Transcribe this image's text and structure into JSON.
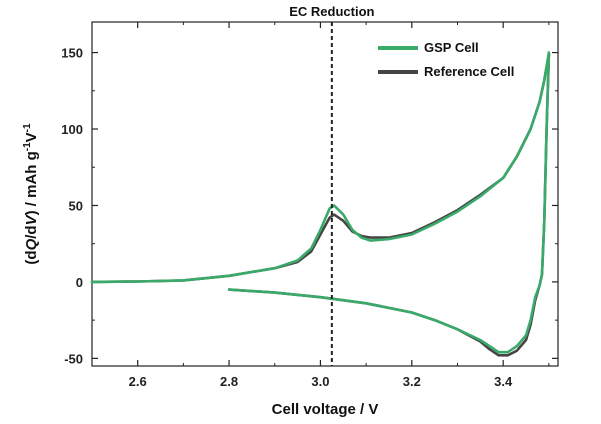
{
  "chart_data": {
    "type": "line",
    "title": "",
    "xlabel": "Cell voltage / V",
    "ylabel_parts": [
      "(d",
      "Q",
      "/d",
      "V",
      ") / mAh g",
      "-1",
      "V",
      "-1"
    ],
    "xlim": [
      2.5,
      3.52
    ],
    "ylim": [
      -55,
      170
    ],
    "xticks": [
      2.6,
      2.8,
      3.0,
      3.2,
      3.4
    ],
    "xtick_labels": [
      "2.6",
      "2.8",
      "3.0",
      "3.2",
      "3.4"
    ],
    "yticks": [
      -50,
      0,
      50,
      100,
      150
    ],
    "ytick_labels": [
      "-50",
      "0",
      "50",
      "100",
      "150"
    ],
    "grid": false,
    "legend_position": "top-right",
    "annotations": [
      {
        "text": "EC Reduction",
        "x": 3.025,
        "linestyle": "dashed"
      }
    ],
    "series": [
      {
        "name": "GSP Cell",
        "color": "#3aaa6a",
        "charge": [
          [
            2.5,
            0
          ],
          [
            2.6,
            0.3
          ],
          [
            2.7,
            1
          ],
          [
            2.8,
            4
          ],
          [
            2.9,
            9
          ],
          [
            2.95,
            14
          ],
          [
            2.98,
            22
          ],
          [
            3.0,
            34
          ],
          [
            3.02,
            48
          ],
          [
            3.03,
            50
          ],
          [
            3.05,
            44
          ],
          [
            3.07,
            34
          ],
          [
            3.09,
            29
          ],
          [
            3.11,
            27
          ],
          [
            3.15,
            28
          ],
          [
            3.2,
            31
          ],
          [
            3.25,
            38
          ],
          [
            3.3,
            46
          ],
          [
            3.35,
            56
          ],
          [
            3.4,
            68
          ],
          [
            3.43,
            82
          ],
          [
            3.46,
            100
          ],
          [
            3.48,
            118
          ],
          [
            3.49,
            132
          ],
          [
            3.5,
            150
          ]
        ],
        "discharge": [
          [
            3.5,
            150
          ],
          [
            3.495,
            100
          ],
          [
            3.49,
            40
          ],
          [
            3.485,
            5
          ],
          [
            3.48,
            -2
          ],
          [
            3.47,
            -10
          ],
          [
            3.46,
            -25
          ],
          [
            3.45,
            -35
          ],
          [
            3.43,
            -42
          ],
          [
            3.41,
            -46
          ],
          [
            3.39,
            -46
          ],
          [
            3.37,
            -42
          ],
          [
            3.35,
            -38
          ],
          [
            3.3,
            -31
          ],
          [
            3.25,
            -25
          ],
          [
            3.2,
            -20
          ],
          [
            3.1,
            -14
          ],
          [
            3.0,
            -10
          ],
          [
            2.9,
            -7
          ],
          [
            2.8,
            -5
          ]
        ]
      },
      {
        "name": "Reference Cell",
        "color": "#454545",
        "charge": [
          [
            2.5,
            0
          ],
          [
            2.6,
            0.3
          ],
          [
            2.7,
            1
          ],
          [
            2.8,
            4
          ],
          [
            2.9,
            9
          ],
          [
            2.95,
            13
          ],
          [
            2.98,
            20
          ],
          [
            3.0,
            31
          ],
          [
            3.02,
            42
          ],
          [
            3.03,
            44
          ],
          [
            3.05,
            40
          ],
          [
            3.07,
            33
          ],
          [
            3.09,
            30
          ],
          [
            3.11,
            29
          ],
          [
            3.15,
            29
          ],
          [
            3.2,
            32
          ],
          [
            3.25,
            39
          ],
          [
            3.3,
            47
          ],
          [
            3.35,
            57
          ],
          [
            3.4,
            68
          ],
          [
            3.43,
            82
          ],
          [
            3.46,
            100
          ],
          [
            3.48,
            118
          ],
          [
            3.49,
            132
          ],
          [
            3.5,
            149
          ]
        ],
        "discharge": [
          [
            3.5,
            149
          ],
          [
            3.495,
            100
          ],
          [
            3.49,
            40
          ],
          [
            3.485,
            5
          ],
          [
            3.48,
            -2
          ],
          [
            3.47,
            -12
          ],
          [
            3.46,
            -28
          ],
          [
            3.45,
            -38
          ],
          [
            3.43,
            -45
          ],
          [
            3.41,
            -48
          ],
          [
            3.39,
            -48
          ],
          [
            3.37,
            -44
          ],
          [
            3.35,
            -39
          ],
          [
            3.3,
            -31
          ],
          [
            3.25,
            -25
          ],
          [
            3.2,
            -20
          ],
          [
            3.1,
            -14
          ],
          [
            3.0,
            -10
          ],
          [
            2.9,
            -7
          ],
          [
            2.8,
            -5
          ]
        ]
      }
    ]
  }
}
